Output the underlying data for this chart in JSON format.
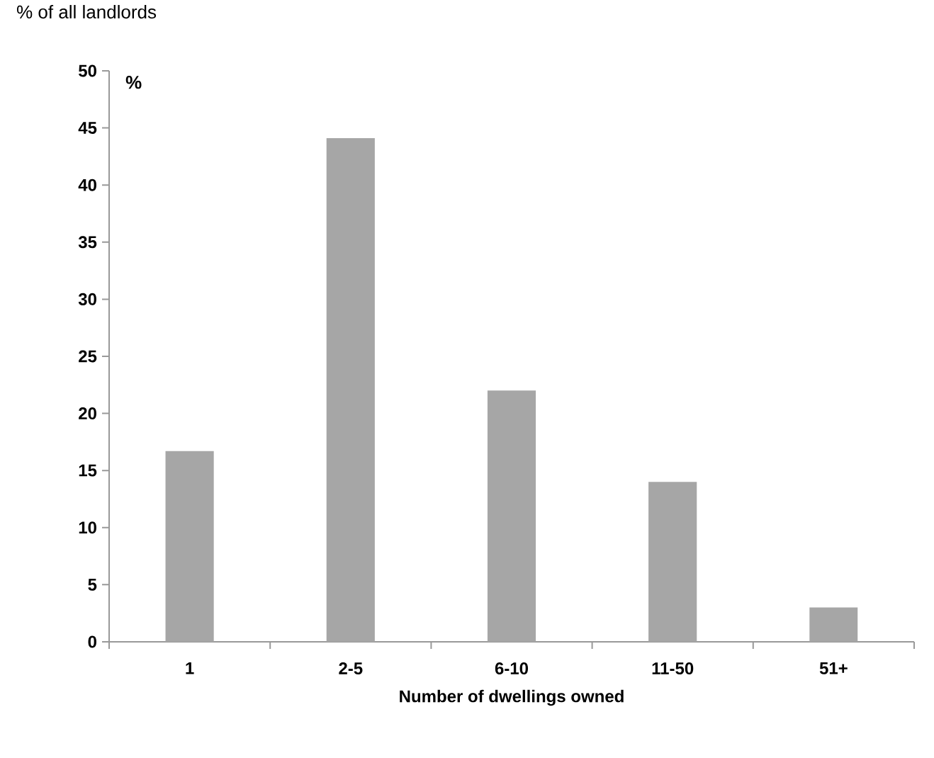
{
  "chart_data": {
    "type": "bar",
    "title": "% of all landlords",
    "ylabel": "%",
    "xlabel": "Number of dwellings owned",
    "categories": [
      "1",
      "2-5",
      "6-10",
      "11-50",
      "51+"
    ],
    "values": [
      16.7,
      44.1,
      22.0,
      14.0,
      3.0
    ],
    "color": "#a6a6a6",
    "ylim": [
      0,
      50
    ],
    "yticks": [
      0,
      5,
      10,
      15,
      20,
      25,
      30,
      35,
      40,
      45,
      50
    ],
    "grid": false
  }
}
